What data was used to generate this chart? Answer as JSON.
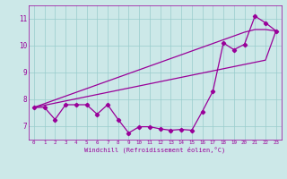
{
  "xlabel": "Windchill (Refroidissement éolien,°C)",
  "background_color": "#cce8e8",
  "line_color": "#990099",
  "grid_color": "#99cccc",
  "x_data": [
    0,
    1,
    2,
    3,
    4,
    5,
    6,
    7,
    8,
    9,
    10,
    11,
    12,
    13,
    14,
    15,
    16,
    17,
    18,
    19,
    20,
    21,
    22,
    23
  ],
  "y_main": [
    7.7,
    7.7,
    7.25,
    7.8,
    7.8,
    7.8,
    7.45,
    7.8,
    7.25,
    6.75,
    6.98,
    6.98,
    6.9,
    6.85,
    6.88,
    6.85,
    7.55,
    8.3,
    10.1,
    9.85,
    10.05,
    11.1,
    10.85,
    10.55
  ],
  "y_trend1": [
    7.7,
    7.84,
    7.98,
    8.12,
    8.26,
    8.4,
    8.54,
    8.68,
    8.82,
    8.96,
    9.1,
    9.24,
    9.38,
    9.52,
    9.66,
    9.8,
    9.94,
    10.08,
    10.22,
    10.36,
    10.5,
    10.6,
    10.6,
    10.55
  ],
  "y_trend2": [
    7.7,
    7.78,
    7.86,
    7.94,
    8.02,
    8.1,
    8.18,
    8.26,
    8.34,
    8.42,
    8.5,
    8.58,
    8.66,
    8.74,
    8.82,
    8.9,
    8.98,
    9.06,
    9.14,
    9.22,
    9.3,
    9.38,
    9.46,
    10.55
  ],
  "ylim": [
    6.5,
    11.5
  ],
  "xlim": [
    -0.5,
    23.5
  ],
  "yticks": [
    7,
    8,
    9,
    10,
    11
  ],
  "xticks": [
    0,
    1,
    2,
    3,
    4,
    5,
    6,
    7,
    8,
    9,
    10,
    11,
    12,
    13,
    14,
    15,
    16,
    17,
    18,
    19,
    20,
    21,
    22,
    23
  ]
}
